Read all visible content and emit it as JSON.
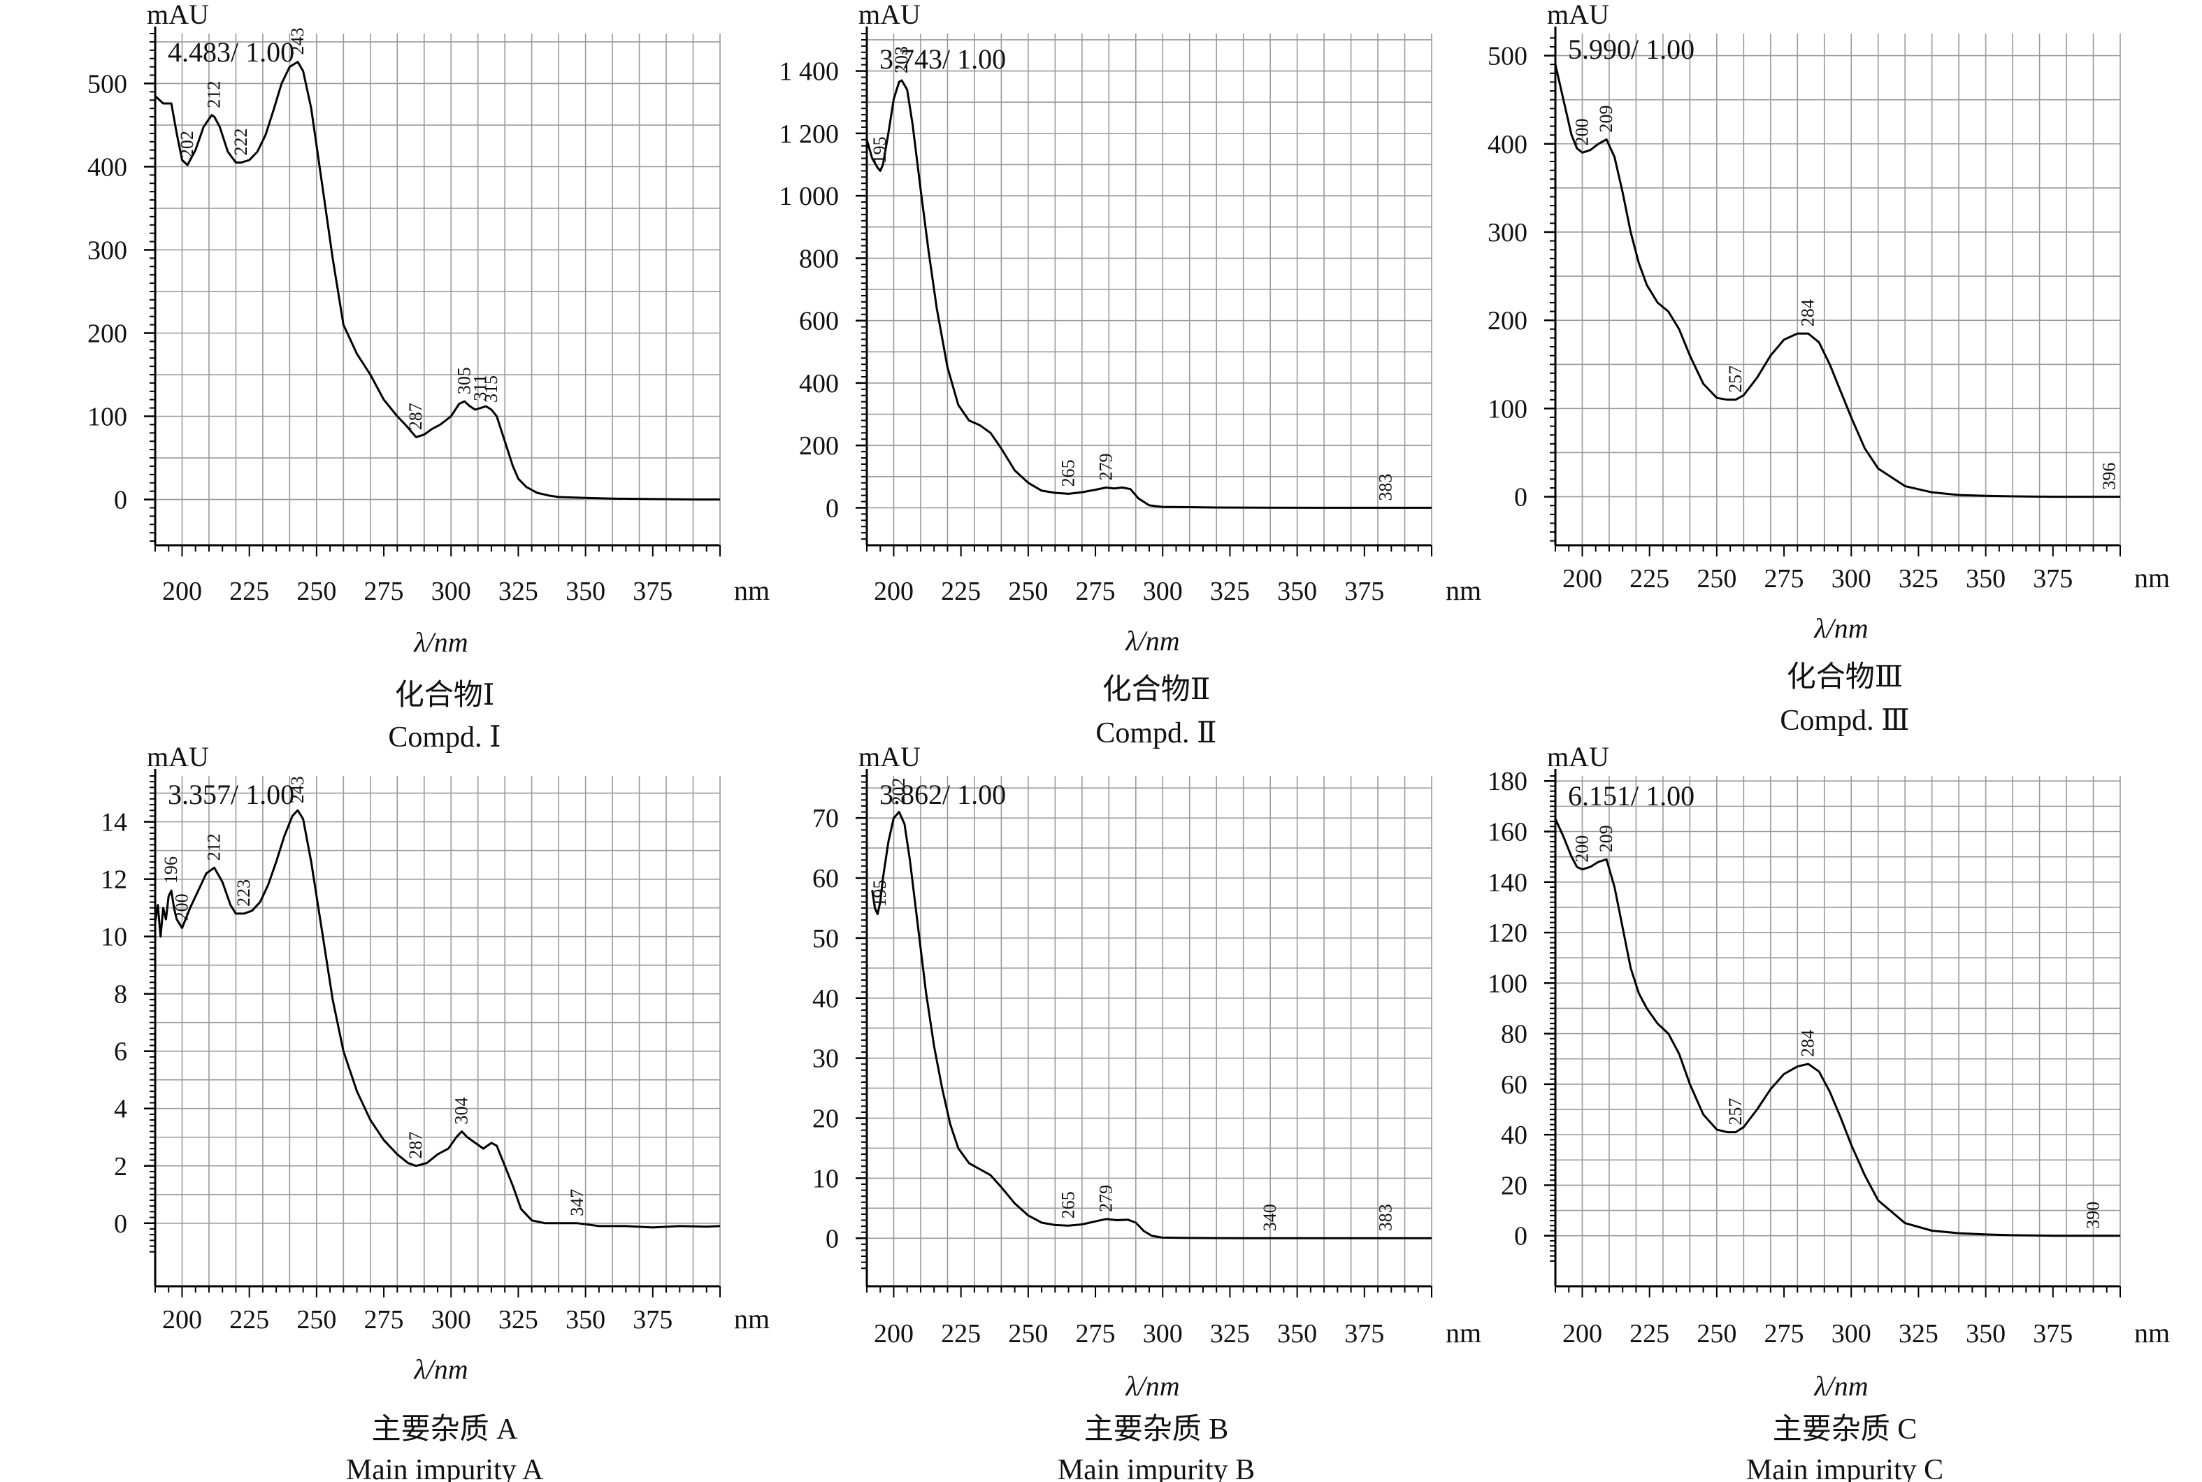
{
  "chart_data": [
    {
      "type": "line",
      "y_unit": "mAU",
      "x_unit": "nm",
      "xlabel": "λ/nm",
      "info": "4.483/ 1.00",
      "caption_cn": "化合物Ⅰ",
      "caption_en": "Compd. Ⅰ",
      "xlim": [
        190,
        400
      ],
      "ylim": [
        -55,
        560
      ],
      "yticks": [
        0,
        100,
        200,
        300,
        400,
        500
      ],
      "ytick_labels": [
        "0",
        "100",
        "200",
        "300",
        "400",
        "500"
      ],
      "xticks": [
        200,
        225,
        250,
        275,
        300,
        325,
        350,
        375
      ],
      "xtick_labels": [
        "200",
        "225",
        "250",
        "275",
        "300",
        "325",
        "350",
        "375"
      ],
      "grid": true,
      "series": [
        {
          "x": [
            190,
            193,
            196,
            198,
            200,
            202,
            205,
            208,
            211,
            212,
            214,
            217,
            220,
            222,
            225,
            228,
            231,
            234,
            237,
            240,
            243,
            245,
            248,
            252,
            256,
            260,
            265,
            270,
            275,
            280,
            283,
            287,
            290,
            293,
            296,
            300,
            303,
            305,
            307,
            309,
            311,
            313,
            315,
            317,
            319,
            321,
            323,
            325,
            328,
            332,
            336,
            340,
            350,
            360,
            375,
            390,
            400
          ],
          "y": [
            485,
            476,
            476,
            440,
            408,
            402,
            420,
            448,
            462,
            460,
            448,
            418,
            405,
            405,
            408,
            418,
            438,
            468,
            500,
            520,
            526,
            515,
            470,
            380,
            290,
            210,
            175,
            150,
            120,
            100,
            90,
            75,
            78,
            85,
            90,
            100,
            115,
            118,
            112,
            108,
            110,
            112,
            108,
            100,
            80,
            60,
            40,
            25,
            15,
            8,
            5,
            3,
            2,
            1,
            0.5,
            0,
            0
          ]
        }
      ],
      "peak_labels": [
        {
          "x": 202,
          "y": 402,
          "text": "202"
        },
        {
          "x": 212,
          "y": 462,
          "text": "212"
        },
        {
          "x": 222,
          "y": 405,
          "text": "222"
        },
        {
          "x": 243,
          "y": 526,
          "text": "243"
        },
        {
          "x": 287,
          "y": 75,
          "text": "287"
        },
        {
          "x": 305,
          "y": 118,
          "text": "305"
        },
        {
          "x": 311,
          "y": 110,
          "text": "311"
        },
        {
          "x": 315,
          "y": 108,
          "text": "315"
        }
      ]
    },
    {
      "type": "line",
      "y_unit": "mAU",
      "x_unit": "nm",
      "xlabel": "λ/nm",
      "info": "3.743/ 1.00",
      "caption_cn": "化合物Ⅱ",
      "caption_en": "Compd. Ⅱ",
      "xlim": [
        190,
        400
      ],
      "ylim": [
        -120,
        1520
      ],
      "yticks": [
        0,
        200,
        400,
        600,
        800,
        1000,
        1200,
        1400
      ],
      "ytick_labels": [
        "0",
        "200",
        "400",
        "600",
        "800",
        "1 000",
        "1 200",
        "1 400"
      ],
      "xticks": [
        200,
        225,
        250,
        275,
        300,
        325,
        350,
        375
      ],
      "xtick_labels": [
        "200",
        "225",
        "250",
        "275",
        "300",
        "325",
        "350",
        "375"
      ],
      "grid": true,
      "series": [
        {
          "x": [
            190,
            192,
            194,
            195,
            196,
            198,
            200,
            202,
            203,
            205,
            207,
            210,
            213,
            216,
            220,
            224,
            228,
            232,
            236,
            240,
            245,
            250,
            255,
            260,
            265,
            270,
            275,
            279,
            282,
            285,
            288,
            291,
            295,
            300,
            310,
            320,
            340,
            360,
            383,
            400
          ],
          "y": [
            1180,
            1120,
            1090,
            1080,
            1100,
            1200,
            1310,
            1365,
            1370,
            1340,
            1230,
            1020,
            820,
            640,
            450,
            330,
            280,
            265,
            240,
            190,
            120,
            80,
            55,
            48,
            45,
            50,
            58,
            65,
            62,
            65,
            60,
            30,
            8,
            3,
            2,
            1,
            0.5,
            0,
            0,
            0
          ]
        }
      ],
      "peak_labels": [
        {
          "x": 195,
          "y": 1080,
          "text": "195"
        },
        {
          "x": 203,
          "y": 1370,
          "text": "203"
        },
        {
          "x": 265,
          "y": 45,
          "text": "265"
        },
        {
          "x": 279,
          "y": 65,
          "text": "279"
        },
        {
          "x": 383,
          "y": 0,
          "text": "383"
        }
      ]
    },
    {
      "type": "line",
      "y_unit": "mAU",
      "x_unit": "nm",
      "xlabel": "λ/nm",
      "info": "5.990/ 1.00",
      "caption_cn": "化合物Ⅲ",
      "caption_en": "Compd. Ⅲ",
      "xlim": [
        190,
        400
      ],
      "ylim": [
        -55,
        525
      ],
      "yticks": [
        0,
        100,
        200,
        300,
        400,
        500
      ],
      "ytick_labels": [
        "0",
        "100",
        "200",
        "300",
        "400",
        "500"
      ],
      "xticks": [
        200,
        225,
        250,
        275,
        300,
        325,
        350,
        375
      ],
      "xtick_labels": [
        "200",
        "225",
        "250",
        "275",
        "300",
        "325",
        "350",
        "375"
      ],
      "grid": true,
      "series": [
        {
          "x": [
            190,
            193,
            196,
            198,
            200,
            203,
            206,
            209,
            212,
            215,
            218,
            221,
            224,
            228,
            232,
            236,
            240,
            245,
            250,
            254,
            257,
            260,
            265,
            270,
            275,
            280,
            284,
            288,
            292,
            296,
            300,
            305,
            310,
            320,
            330,
            340,
            350,
            360,
            375,
            396,
            400
          ],
          "y": [
            490,
            450,
            410,
            395,
            390,
            393,
            400,
            405,
            385,
            345,
            300,
            265,
            240,
            220,
            210,
            190,
            160,
            128,
            112,
            110,
            110,
            115,
            135,
            160,
            178,
            185,
            185,
            175,
            150,
            120,
            90,
            55,
            32,
            12,
            5,
            2,
            1,
            0.5,
            0,
            0,
            0
          ]
        }
      ],
      "peak_labels": [
        {
          "x": 200,
          "y": 390,
          "text": "200"
        },
        {
          "x": 209,
          "y": 405,
          "text": "209"
        },
        {
          "x": 257,
          "y": 110,
          "text": "257"
        },
        {
          "x": 284,
          "y": 185,
          "text": "284"
        },
        {
          "x": 396,
          "y": 0,
          "text": "396"
        }
      ]
    },
    {
      "type": "line",
      "y_unit": "mAU",
      "x_unit": "nm",
      "xlabel": "λ/nm",
      "info": "3.357/ 1.00",
      "caption_cn": "主要杂质 A",
      "caption_en": "Main impurity A",
      "xlim": [
        190,
        400
      ],
      "ylim": [
        -2.2,
        15.6
      ],
      "yticks": [
        0,
        2,
        4,
        6,
        8,
        10,
        12,
        14
      ],
      "ytick_labels": [
        "0",
        "2",
        "4",
        "6",
        "8",
        "10",
        "12",
        "14"
      ],
      "xticks": [
        200,
        225,
        250,
        275,
        300,
        325,
        350,
        375
      ],
      "xtick_labels": [
        "200",
        "225",
        "250",
        "275",
        "300",
        "325",
        "350",
        "375"
      ],
      "grid": true,
      "series": [
        {
          "x": [
            190,
            191,
            192,
            193,
            194,
            195,
            196,
            197,
            198,
            200,
            203,
            206,
            209,
            212,
            215,
            218,
            220,
            223,
            226,
            229,
            232,
            235,
            238,
            241,
            243,
            245,
            248,
            252,
            256,
            260,
            265,
            270,
            275,
            280,
            284,
            287,
            291,
            295,
            299,
            302,
            304,
            306,
            309,
            312,
            315,
            317,
            320,
            323,
            326,
            330,
            335,
            340,
            347,
            355,
            365,
            375,
            385,
            395,
            400
          ],
          "y": [
            10.5,
            11.1,
            10.0,
            11.0,
            10.6,
            11.4,
            11.6,
            11.0,
            10.6,
            10.3,
            11.0,
            11.6,
            12.2,
            12.4,
            11.9,
            11.1,
            10.8,
            10.8,
            10.9,
            11.2,
            11.8,
            12.6,
            13.5,
            14.2,
            14.4,
            14.1,
            12.6,
            10.2,
            7.8,
            6.0,
            4.6,
            3.6,
            2.9,
            2.4,
            2.1,
            2.0,
            2.1,
            2.4,
            2.6,
            3.0,
            3.2,
            3.0,
            2.8,
            2.6,
            2.8,
            2.7,
            2.0,
            1.3,
            0.5,
            0.1,
            0.0,
            0.0,
            0.0,
            -0.1,
            -0.1,
            -0.15,
            -0.1,
            -0.12,
            -0.1
          ]
        }
      ],
      "peak_labels": [
        {
          "x": 196,
          "y": 11.6,
          "text": "196"
        },
        {
          "x": 200,
          "y": 10.3,
          "text": "200"
        },
        {
          "x": 212,
          "y": 12.4,
          "text": "212"
        },
        {
          "x": 223,
          "y": 10.8,
          "text": "223"
        },
        {
          "x": 243,
          "y": 14.4,
          "text": "243"
        },
        {
          "x": 287,
          "y": 2.0,
          "text": "287"
        },
        {
          "x": 304,
          "y": 3.2,
          "text": "304"
        },
        {
          "x": 347,
          "y": 0.0,
          "text": "347"
        }
      ]
    },
    {
      "type": "line",
      "y_unit": "mAU",
      "x_unit": "nm",
      "xlabel": "λ/nm",
      "info": "3.862/ 1.00",
      "caption_cn": "主要杂质 B",
      "caption_en": "Main impurity B",
      "xlim": [
        190,
        400
      ],
      "ylim": [
        -8,
        77
      ],
      "yticks": [
        0,
        10,
        20,
        30,
        40,
        50,
        60,
        70
      ],
      "ytick_labels": [
        "0",
        "10",
        "20",
        "30",
        "40",
        "50",
        "60",
        "70"
      ],
      "xticks": [
        200,
        225,
        250,
        275,
        300,
        325,
        350,
        375
      ],
      "xtick_labels": [
        "200",
        "225",
        "250",
        "275",
        "300",
        "325",
        "350",
        "375"
      ],
      "grid": true,
      "series": [
        {
          "x": [
            192,
            193,
            194,
            195,
            196,
            198,
            200,
            202,
            204,
            206,
            209,
            212,
            215,
            218,
            221,
            224,
            228,
            232,
            236,
            240,
            245,
            250,
            255,
            260,
            265,
            270,
            275,
            279,
            283,
            287,
            290,
            293,
            296,
            300,
            310,
            320,
            340,
            360,
            383,
            400
          ],
          "y": [
            58,
            55,
            54,
            56,
            60,
            66,
            70,
            71,
            69,
            63,
            52,
            41,
            32,
            25,
            19,
            15,
            12.5,
            11.5,
            10.5,
            8.5,
            5.8,
            3.8,
            2.6,
            2.2,
            2.1,
            2.3,
            2.8,
            3.2,
            3.0,
            3.1,
            2.6,
            1.2,
            0.4,
            0.1,
            0.05,
            0.02,
            0,
            0,
            0,
            0
          ]
        }
      ],
      "peak_labels": [
        {
          "x": 195,
          "y": 54,
          "text": "195"
        },
        {
          "x": 202,
          "y": 71,
          "text": "202"
        },
        {
          "x": 265,
          "y": 2.1,
          "text": "265"
        },
        {
          "x": 279,
          "y": 3.2,
          "text": "279"
        },
        {
          "x": 340,
          "y": 0,
          "text": "340"
        },
        {
          "x": 383,
          "y": 0,
          "text": "383"
        }
      ]
    },
    {
      "type": "line",
      "y_unit": "mAU",
      "x_unit": "nm",
      "xlabel": "λ/nm",
      "info": "6.151/ 1.00",
      "caption_cn": "主要杂质 C",
      "caption_en": "Main impurity C",
      "xlim": [
        190,
        400
      ],
      "ylim": [
        -20,
        182
      ],
      "yticks": [
        0,
        20,
        40,
        60,
        80,
        100,
        120,
        140,
        160,
        180
      ],
      "ytick_labels": [
        "0",
        "20",
        "40",
        "60",
        "80",
        "100",
        "120",
        "140",
        "160",
        "180"
      ],
      "xticks": [
        200,
        225,
        250,
        275,
        300,
        325,
        350,
        375
      ],
      "xtick_labels": [
        "200",
        "225",
        "250",
        "275",
        "300",
        "325",
        "350",
        "375"
      ],
      "grid": true,
      "series": [
        {
          "x": [
            190,
            193,
            196,
            198,
            200,
            203,
            206,
            209,
            212,
            215,
            218,
            221,
            224,
            228,
            232,
            236,
            240,
            245,
            250,
            254,
            257,
            260,
            265,
            270,
            275,
            280,
            284,
            288,
            292,
            296,
            300,
            305,
            310,
            320,
            330,
            340,
            350,
            360,
            375,
            390,
            400
          ],
          "y": [
            165,
            158,
            150,
            146,
            145,
            146,
            148,
            149,
            138,
            122,
            106,
            96,
            90,
            84,
            80,
            72,
            60,
            48,
            42,
            41,
            41,
            43,
            50,
            58,
            64,
            67,
            68,
            65,
            57,
            47,
            36,
            24,
            14,
            5,
            2,
            1,
            0.5,
            0.2,
            0,
            0,
            0
          ]
        }
      ],
      "peak_labels": [
        {
          "x": 200,
          "y": 145,
          "text": "200"
        },
        {
          "x": 209,
          "y": 149,
          "text": "209"
        },
        {
          "x": 257,
          "y": 41,
          "text": "257"
        },
        {
          "x": 284,
          "y": 68,
          "text": "284"
        },
        {
          "x": 390,
          "y": 0,
          "text": "390"
        }
      ]
    }
  ]
}
